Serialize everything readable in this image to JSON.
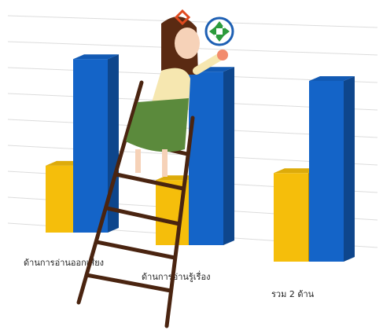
{
  "chart_data": {
    "type": "bar3d",
    "categories": [
      "ด้านการอ่านออกเสียง",
      "ด้านการอ่านรู้เรื่อง",
      "รวม 2 ด้าน"
    ],
    "series": [
      {
        "color": "#f5be0b",
        "values": [
          37,
          36,
          49
        ]
      },
      {
        "color": "#1464c8",
        "values": [
          96,
          96,
          100
        ]
      }
    ],
    "ylim": [
      0,
      100
    ],
    "grid": true
  }
}
